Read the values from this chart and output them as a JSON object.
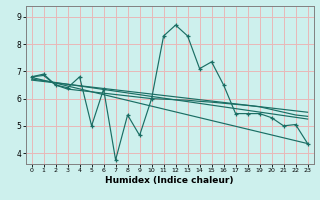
{
  "xlabel": "Humidex (Indice chaleur)",
  "bg_color": "#cdf0ed",
  "grid_color": "#e8b8b8",
  "line_color": "#1a6e64",
  "x_ticks": [
    0,
    1,
    2,
    3,
    4,
    5,
    6,
    7,
    8,
    9,
    10,
    11,
    12,
    13,
    14,
    15,
    16,
    17,
    18,
    19,
    20,
    21,
    22,
    23
  ],
  "y_ticks": [
    4,
    5,
    6,
    7,
    8,
    9
  ],
  "ylim": [
    3.6,
    9.4
  ],
  "xlim": [
    -0.5,
    23.5
  ],
  "line1_x": [
    0,
    1,
    2,
    3,
    4,
    5,
    6,
    7,
    8,
    9,
    10,
    11,
    12,
    13,
    14,
    15,
    16,
    17,
    18,
    19,
    20,
    21,
    22,
    23
  ],
  "line1_y": [
    6.8,
    6.9,
    6.5,
    6.4,
    6.8,
    5.0,
    6.35,
    3.75,
    5.4,
    4.65,
    6.0,
    8.3,
    8.7,
    8.3,
    7.1,
    7.35,
    6.5,
    5.45,
    5.45,
    5.45,
    5.3,
    5.0,
    5.05,
    4.35
  ],
  "line2_x": [
    0,
    1,
    2,
    3,
    4,
    10,
    11,
    12,
    13,
    14,
    15,
    16,
    17,
    18,
    19,
    20,
    21,
    22,
    23
  ],
  "line2_y": [
    6.8,
    6.85,
    6.5,
    6.35,
    6.3,
    6.0,
    5.98,
    5.96,
    5.94,
    5.9,
    5.87,
    5.83,
    5.79,
    5.75,
    5.7,
    5.6,
    5.5,
    5.4,
    5.35
  ],
  "line3_x": [
    0,
    23
  ],
  "line3_y": [
    6.78,
    4.35
  ],
  "line4_x": [
    0,
    23
  ],
  "line4_y": [
    6.72,
    5.25
  ],
  "line5_x": [
    0,
    23
  ],
  "line5_y": [
    6.68,
    5.5
  ]
}
